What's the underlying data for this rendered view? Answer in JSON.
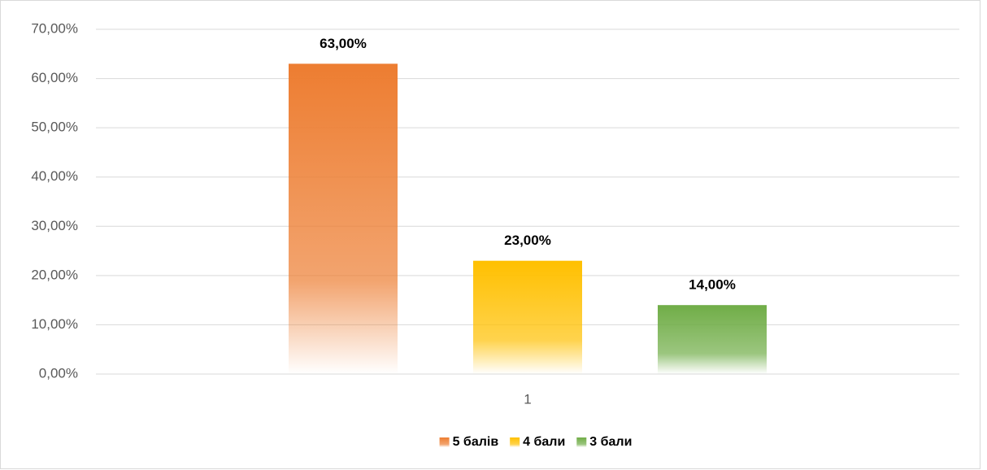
{
  "chart_data": {
    "type": "bar",
    "categories": [
      "1"
    ],
    "series": [
      {
        "name": "5 балів",
        "color": "#ed7d31",
        "values": [
          63
        ],
        "value_labels": [
          "63,00%"
        ]
      },
      {
        "name": "4 бали",
        "color": "#ffc000",
        "values": [
          23
        ],
        "value_labels": [
          "23,00%"
        ]
      },
      {
        "name": "3 бали",
        "color": "#70ad47",
        "values": [
          14
        ],
        "value_labels": [
          "14,00%"
        ]
      }
    ],
    "ylim": [
      0,
      70
    ],
    "yticks": [
      {
        "value": 0,
        "label": "0,00%"
      },
      {
        "value": 10,
        "label": "10,00%"
      },
      {
        "value": 20,
        "label": "20,00%"
      },
      {
        "value": 30,
        "label": "30,00%"
      },
      {
        "value": 40,
        "label": "40,00%"
      },
      {
        "value": 50,
        "label": "50,00%"
      },
      {
        "value": 60,
        "label": "60,00%"
      },
      {
        "value": 70,
        "label": "70,00%"
      }
    ],
    "grid": true,
    "legend": "bottom"
  }
}
